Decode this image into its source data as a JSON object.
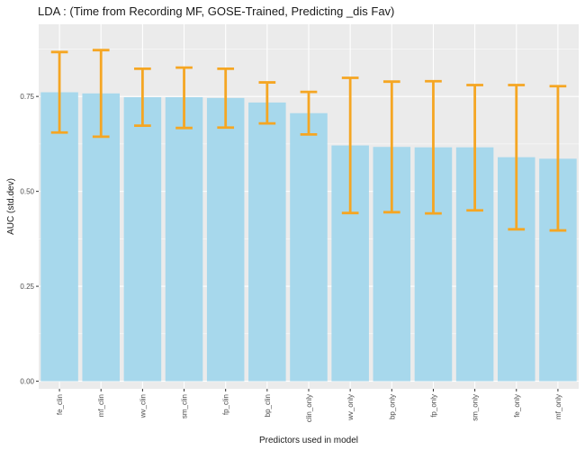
{
  "chart_data": {
    "type": "bar",
    "title": "LDA : (Time from Recording MF, GOSE-Trained, Predicting _dis Fav)",
    "xlabel": "Predictors used in model",
    "ylabel": "AUC (std.dev)",
    "ylim": [
      -0.02,
      0.94
    ],
    "yticks": [
      0.0,
      0.25,
      0.5,
      0.75
    ],
    "ytick_labels": [
      "0.00",
      "0.25",
      "0.50",
      "0.75"
    ],
    "grid": true,
    "categories": [
      "fe_clin",
      "mf_clin",
      "wv_clin",
      "sm_clin",
      "fp_clin",
      "bp_clin",
      "clin_only",
      "wv_only",
      "bp_only",
      "fp_only",
      "sm_only",
      "fe_only",
      "mf_only"
    ],
    "values": [
      0.761,
      0.758,
      0.748,
      0.748,
      0.746,
      0.734,
      0.706,
      0.621,
      0.617,
      0.616,
      0.616,
      0.59,
      0.586
    ],
    "error_low": [
      0.655,
      0.644,
      0.673,
      0.667,
      0.668,
      0.679,
      0.65,
      0.443,
      0.445,
      0.442,
      0.45,
      0.4,
      0.397
    ],
    "error_high": [
      0.867,
      0.872,
      0.823,
      0.826,
      0.823,
      0.787,
      0.762,
      0.799,
      0.789,
      0.79,
      0.78,
      0.78,
      0.777
    ],
    "colors": {
      "bar": "#a7d8ec",
      "errorbar": "#f5a623",
      "panel_background": "#ebebeb",
      "gridline": "#ffffff"
    }
  }
}
